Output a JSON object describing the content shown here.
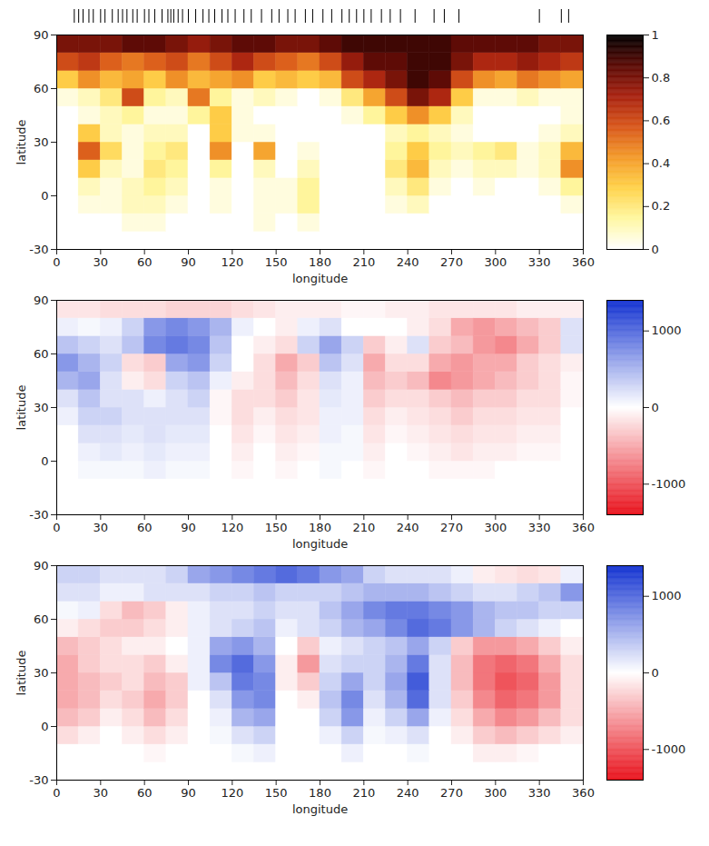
{
  "chart_data": [
    {
      "type": "heatmap",
      "xlabel": "longitude",
      "ylabel": "latitude",
      "xlim": [
        0,
        360
      ],
      "xticks": [
        0,
        30,
        60,
        90,
        120,
        150,
        180,
        210,
        240,
        270,
        300,
        330,
        360
      ],
      "ylim": [
        -30,
        90
      ],
      "yticks": [
        -30,
        0,
        30,
        60,
        90
      ],
      "top_marks": [
        12,
        15,
        18,
        22,
        25,
        30,
        33,
        38,
        42,
        45,
        48,
        52,
        55,
        60,
        63,
        67,
        72,
        76,
        78,
        80,
        83,
        86,
        90,
        95,
        100,
        104,
        108,
        113,
        117,
        122,
        128,
        133,
        140,
        147,
        152,
        158,
        163,
        170,
        175,
        182,
        188,
        195,
        200,
        205,
        210,
        215,
        222,
        228,
        235,
        245,
        258,
        265,
        275,
        330,
        345,
        350
      ],
      "lon_bins": [
        0,
        15,
        30,
        45,
        60,
        75,
        90,
        105,
        120,
        135,
        150,
        165,
        180,
        195,
        210,
        225,
        240,
        255,
        270,
        285,
        300,
        315,
        330,
        345,
        360
      ],
      "lat_bins": [
        -30,
        -20,
        -10,
        0,
        10,
        20,
        30,
        40,
        50,
        60,
        70,
        80,
        90
      ],
      "cells": [
        [
          0,
          0,
          0,
          0,
          0,
          0,
          0,
          0,
          0,
          0,
          0,
          0,
          0,
          0,
          0,
          0,
          0,
          0,
          0,
          0,
          0,
          0,
          0,
          0
        ],
        [
          0,
          0,
          0,
          0.05,
          0.05,
          0,
          0,
          0,
          0,
          0.05,
          0,
          0.05,
          0,
          0,
          0,
          0,
          0,
          0,
          0,
          0,
          0,
          0,
          0,
          0
        ],
        [
          0,
          0.05,
          0.05,
          0.1,
          0.1,
          0.05,
          0,
          0.05,
          0,
          0.05,
          0.05,
          0.15,
          0,
          0,
          0,
          0.05,
          0.1,
          0,
          0,
          0,
          0,
          0,
          0,
          0.05
        ],
        [
          0,
          0.1,
          0.05,
          0.1,
          0.15,
          0.1,
          0,
          0.05,
          0,
          0.05,
          0.05,
          0.15,
          0,
          0,
          0,
          0.1,
          0.2,
          0.05,
          0,
          0.05,
          0,
          0,
          0.05,
          0.15
        ],
        [
          0,
          0.3,
          0.1,
          0.05,
          0.2,
          0.15,
          0,
          0.15,
          0,
          0.1,
          0,
          0.1,
          0,
          0,
          0,
          0.2,
          0.35,
          0.1,
          0.05,
          0.1,
          0.1,
          0.05,
          0.1,
          0.45
        ],
        [
          0,
          0.55,
          0.25,
          0.05,
          0.15,
          0.2,
          0,
          0.45,
          0,
          0.4,
          0,
          0.05,
          0,
          0,
          0,
          0.15,
          0.3,
          0.15,
          0.1,
          0.15,
          0.2,
          0.05,
          0.1,
          0.35
        ],
        [
          0,
          0.3,
          0.1,
          0.05,
          0.1,
          0.1,
          0,
          0.3,
          0.05,
          0.05,
          0,
          0,
          0,
          0,
          0,
          0.1,
          0.15,
          0.1,
          0.05,
          0,
          0,
          0,
          0.05,
          0.1
        ],
        [
          0,
          0.05,
          0.1,
          0.15,
          0.05,
          0.05,
          0.15,
          0.3,
          0.05,
          0,
          0,
          0,
          0,
          0.05,
          0.15,
          0.3,
          0.45,
          0.3,
          0.1,
          0,
          0,
          0,
          0,
          0.05
        ],
        [
          0.05,
          0.1,
          0.2,
          0.6,
          0.15,
          0.1,
          0.5,
          0.15,
          0.05,
          0.1,
          0.05,
          0,
          0.05,
          0.2,
          0.4,
          0.6,
          0.8,
          0.7,
          0.3,
          0.05,
          0.05,
          0.1,
          0.05,
          0.05
        ],
        [
          0.3,
          0.45,
          0.35,
          0.4,
          0.3,
          0.45,
          0.35,
          0.4,
          0.45,
          0.3,
          0.35,
          0.3,
          0.35,
          0.6,
          0.7,
          0.8,
          0.9,
          0.85,
          0.6,
          0.45,
          0.4,
          0.5,
          0.45,
          0.4
        ],
        [
          0.6,
          0.65,
          0.55,
          0.5,
          0.55,
          0.6,
          0.5,
          0.6,
          0.7,
          0.6,
          0.55,
          0.5,
          0.6,
          0.75,
          0.85,
          0.85,
          0.9,
          0.9,
          0.8,
          0.7,
          0.7,
          0.75,
          0.7,
          0.65
        ],
        [
          0.8,
          0.8,
          0.8,
          0.85,
          0.85,
          0.8,
          0.75,
          0.8,
          0.85,
          0.85,
          0.8,
          0.8,
          0.85,
          0.9,
          0.9,
          0.9,
          0.9,
          0.9,
          0.85,
          0.85,
          0.85,
          0.85,
          0.8,
          0.8
        ]
      ],
      "colorbar": {
        "lim": [
          0,
          1
        ],
        "ticks": [
          0,
          0.2,
          0.4,
          0.6,
          0.8,
          1
        ]
      }
    },
    {
      "type": "heatmap",
      "xlabel": "longitude",
      "ylabel": "latitude",
      "xlim": [
        0,
        360
      ],
      "xticks": [
        0,
        30,
        60,
        90,
        120,
        150,
        180,
        210,
        240,
        270,
        300,
        330,
        360
      ],
      "ylim": [
        -30,
        90
      ],
      "yticks": [
        -30,
        0,
        30,
        60,
        90
      ],
      "lon_bins": [
        0,
        15,
        30,
        45,
        60,
        75,
        90,
        105,
        120,
        135,
        150,
        165,
        180,
        195,
        210,
        225,
        240,
        255,
        270,
        285,
        300,
        315,
        330,
        345,
        360
      ],
      "lat_bins": [
        -30,
        -20,
        -10,
        0,
        10,
        20,
        30,
        40,
        50,
        60,
        70,
        80,
        90
      ],
      "cells": [
        [
          0,
          0,
          0,
          0,
          0,
          0,
          0,
          0,
          0,
          0,
          0,
          0,
          0,
          0,
          0,
          0,
          0,
          0,
          0,
          0,
          0,
          0,
          0,
          0
        ],
        [
          0,
          0,
          0,
          0,
          0,
          0,
          0,
          0,
          0,
          0,
          0,
          0,
          0,
          0,
          0,
          0,
          0,
          0,
          0,
          0,
          0,
          0,
          0,
          0
        ],
        [
          0,
          50,
          50,
          50,
          100,
          50,
          50,
          0,
          -50,
          0,
          -50,
          0,
          50,
          0,
          -50,
          0,
          0,
          -50,
          -50,
          -50,
          0,
          0,
          0,
          0
        ],
        [
          0,
          100,
          150,
          100,
          150,
          100,
          100,
          0,
          -100,
          0,
          -100,
          -50,
          50,
          50,
          -100,
          0,
          -50,
          -100,
          -150,
          -100,
          -100,
          -50,
          -50,
          0
        ],
        [
          0,
          200,
          200,
          150,
          200,
          150,
          150,
          0,
          -150,
          -50,
          -150,
          -100,
          100,
          50,
          -150,
          -50,
          -100,
          -150,
          -200,
          -150,
          -150,
          -100,
          -100,
          0
        ],
        [
          100,
          300,
          300,
          200,
          200,
          200,
          200,
          -50,
          -200,
          -100,
          -200,
          -150,
          100,
          100,
          -200,
          -100,
          -150,
          -200,
          -300,
          -200,
          -200,
          -150,
          -150,
          0
        ],
        [
          200,
          400,
          200,
          200,
          100,
          200,
          300,
          -50,
          -200,
          -200,
          -300,
          -150,
          150,
          100,
          -300,
          -200,
          -200,
          -300,
          -400,
          -300,
          -300,
          -200,
          -200,
          -50
        ],
        [
          500,
          600,
          200,
          -100,
          -200,
          300,
          400,
          100,
          -100,
          -200,
          -400,
          -200,
          200,
          100,
          -400,
          -300,
          -400,
          -700,
          -600,
          -500,
          -400,
          -300,
          -200,
          -50
        ],
        [
          700,
          500,
          300,
          -200,
          -300,
          600,
          700,
          300,
          0,
          -200,
          -500,
          -300,
          400,
          200,
          -500,
          -200,
          -200,
          -500,
          -600,
          -500,
          -500,
          -300,
          -200,
          -100
        ],
        [
          400,
          300,
          200,
          400,
          800,
          900,
          800,
          400,
          0,
          -100,
          -200,
          300,
          600,
          300,
          -300,
          -100,
          200,
          -300,
          -400,
          -600,
          -700,
          -500,
          -300,
          200
        ],
        [
          100,
          50,
          100,
          300,
          700,
          800,
          700,
          500,
          100,
          0,
          -100,
          100,
          200,
          0,
          0,
          0,
          -100,
          -200,
          -500,
          -600,
          -500,
          -400,
          -300,
          200
        ],
        [
          -150,
          -150,
          -200,
          -200,
          -200,
          -250,
          -250,
          -250,
          -200,
          -150,
          -100,
          -100,
          -100,
          -50,
          -50,
          -100,
          -100,
          -150,
          -150,
          -150,
          -150,
          -100,
          -100,
          -100
        ]
      ],
      "colorbar": {
        "lim": [
          -1400,
          1400
        ],
        "ticks": [
          -1000,
          0,
          1000
        ]
      }
    },
    {
      "type": "heatmap",
      "xlabel": "longitude",
      "ylabel": "latitude",
      "xlim": [
        0,
        360
      ],
      "xticks": [
        0,
        30,
        60,
        90,
        120,
        150,
        180,
        210,
        240,
        270,
        300,
        330,
        360
      ],
      "ylim": [
        -30,
        90
      ],
      "yticks": [
        -30,
        0,
        30,
        60,
        90
      ],
      "lon_bins": [
        0,
        15,
        30,
        45,
        60,
        75,
        90,
        105,
        120,
        135,
        150,
        165,
        180,
        195,
        210,
        225,
        240,
        255,
        270,
        285,
        300,
        315,
        330,
        345,
        360
      ],
      "lat_bins": [
        -30,
        -20,
        -10,
        0,
        10,
        20,
        30,
        40,
        50,
        60,
        70,
        80,
        90
      ],
      "cells": [
        [
          0,
          0,
          0,
          0,
          0,
          0,
          0,
          0,
          0,
          0,
          0,
          0,
          0,
          0,
          0,
          0,
          0,
          0,
          0,
          0,
          0,
          0,
          0,
          0
        ],
        [
          0,
          0,
          0,
          0,
          -50,
          0,
          0,
          0,
          50,
          100,
          0,
          0,
          0,
          100,
          0,
          0,
          50,
          0,
          0,
          -100,
          -100,
          -50,
          0,
          0
        ],
        [
          -200,
          -100,
          0,
          -100,
          -200,
          -100,
          0,
          50,
          200,
          300,
          0,
          0,
          100,
          300,
          50,
          100,
          200,
          0,
          -100,
          -300,
          -400,
          -300,
          -200,
          -100
        ],
        [
          -400,
          -300,
          -100,
          -200,
          -400,
          -200,
          0,
          100,
          500,
          600,
          0,
          0,
          300,
          700,
          100,
          300,
          600,
          100,
          -200,
          -500,
          -700,
          -600,
          -400,
          -200
        ],
        [
          -500,
          -400,
          -200,
          -300,
          -500,
          -300,
          0,
          200,
          700,
          800,
          0,
          -100,
          400,
          800,
          200,
          500,
          1000,
          200,
          -300,
          -700,
          -900,
          -800,
          -600,
          -200
        ],
        [
          -500,
          -400,
          -300,
          -200,
          -400,
          -300,
          100,
          400,
          900,
          800,
          -100,
          -300,
          300,
          600,
          300,
          600,
          1100,
          200,
          -400,
          -800,
          -1000,
          -900,
          -600,
          -200
        ],
        [
          -500,
          -300,
          -200,
          -200,
          -300,
          -100,
          100,
          800,
          1000,
          700,
          -100,
          -600,
          200,
          300,
          300,
          500,
          900,
          200,
          -400,
          -800,
          -900,
          -800,
          -500,
          -200
        ],
        [
          -400,
          -300,
          -200,
          -100,
          -100,
          0,
          100,
          600,
          700,
          500,
          0,
          -300,
          100,
          200,
          300,
          400,
          600,
          300,
          -300,
          -600,
          -600,
          -500,
          -300,
          -100
        ],
        [
          -100,
          -200,
          -300,
          -300,
          -200,
          -100,
          100,
          200,
          300,
          400,
          100,
          200,
          300,
          500,
          600,
          800,
          1000,
          900,
          700,
          500,
          300,
          200,
          100,
          0
        ],
        [
          50,
          100,
          -200,
          -400,
          -300,
          -100,
          100,
          200,
          200,
          300,
          200,
          200,
          400,
          600,
          800,
          900,
          900,
          800,
          700,
          500,
          400,
          400,
          300,
          300
        ],
        [
          200,
          200,
          100,
          100,
          200,
          200,
          200,
          300,
          300,
          400,
          300,
          300,
          300,
          400,
          500,
          500,
          500,
          400,
          300,
          200,
          200,
          300,
          400,
          700
        ],
        [
          300,
          300,
          200,
          200,
          200,
          300,
          600,
          700,
          800,
          900,
          1000,
          900,
          700,
          600,
          300,
          200,
          200,
          200,
          100,
          -100,
          -150,
          -200,
          -150,
          100
        ]
      ],
      "colorbar": {
        "lim": [
          -1400,
          1400
        ],
        "ticks": [
          -1000,
          0,
          1000
        ]
      }
    }
  ]
}
